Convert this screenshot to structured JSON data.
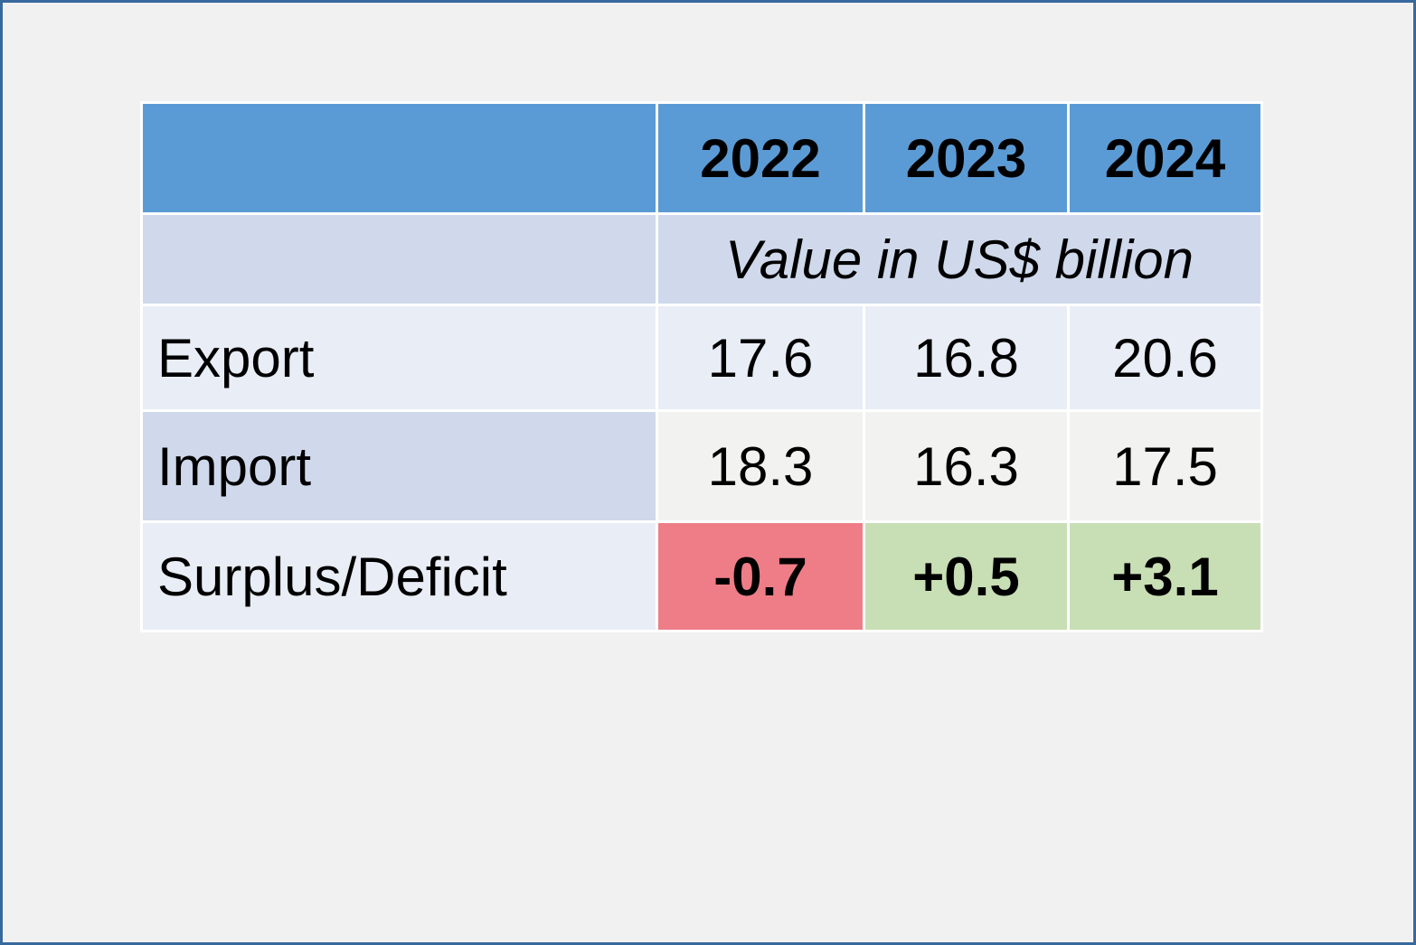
{
  "window": {
    "background": "#f1f1f2",
    "frame_border_color": "#37699d"
  },
  "table": {
    "corner": "",
    "years": [
      "2022",
      "2023",
      "2024"
    ],
    "caption": "Value in US$ billion",
    "rows": [
      {
        "label": "Export",
        "values": [
          "17.6",
          "16.8",
          "20.6"
        ]
      },
      {
        "label": "Import",
        "values": [
          "18.3",
          "16.3",
          "17.5"
        ]
      },
      {
        "label": "Surplus/Deficit",
        "values": [
          "-0.7",
          "+0.5",
          "+3.1"
        ]
      }
    ],
    "colors": {
      "header_bg": "#5b9bd5",
      "header_text": "#ffffff",
      "caption_row_bg": "#cfd9eb",
      "band_light_bg": "#e9edf5",
      "band_gray_bg": "#f2f2f1",
      "deficit_bg": "#ee7d88",
      "deficit_text": "#c00000",
      "surplus_bg": "#c8dfb5",
      "surplus_text": "#3f6b28",
      "gridline": "#ffffff"
    }
  },
  "chart_data": {
    "type": "table",
    "categories": [
      "2022",
      "2023",
      "2024"
    ],
    "units": "Value in US$ billion",
    "series": [
      {
        "name": "Export",
        "values": [
          17.6,
          16.8,
          20.6
        ]
      },
      {
        "name": "Import",
        "values": [
          18.3,
          16.3,
          17.5
        ]
      },
      {
        "name": "Surplus/Deficit",
        "values": [
          -0.7,
          0.5,
          3.1
        ]
      }
    ],
    "cell_highlights": {
      "Surplus/Deficit": [
        "negative-red",
        "positive-green",
        "positive-green"
      ]
    }
  }
}
